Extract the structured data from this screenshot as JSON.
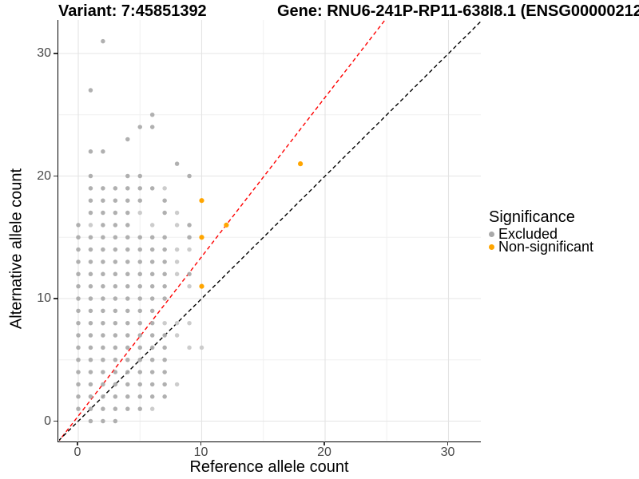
{
  "chart_data": {
    "type": "scatter",
    "titles": {
      "left": "Variant: 7:45851392",
      "right": "Gene: RNU6-241P-RP11-638I8.1 (ENSG00000212"
    },
    "xlabel": "Reference allele count",
    "ylabel": "Alternative allele count",
    "xticks": [
      0,
      10,
      20,
      30
    ],
    "yticks": [
      0,
      10,
      20,
      30
    ],
    "xlim": [
      -1.55,
      32.65
    ],
    "ylim": [
      -1.6,
      32.73
    ],
    "grid": {
      "minor_step": 5,
      "major_color": "#e4e4e4",
      "minor_color": "#f0f0f0",
      "grid_on": true
    },
    "legend": {
      "title": "Significance",
      "position": "right",
      "items": [
        {
          "label": "Excluded",
          "color": "#a9a9a9"
        },
        {
          "label": "Non-significant",
          "color": "#ffa500"
        }
      ]
    },
    "lines": [
      {
        "name": "expected-ratio-line",
        "color": "#ff0000",
        "slope": 1.3,
        "intercept": 0.42,
        "dash": "5,3.5"
      },
      {
        "name": "identity-line",
        "color": "#000000",
        "slope": 1,
        "intercept": 0,
        "dash": "5,3.5"
      }
    ],
    "series": [
      {
        "name": "Excluded",
        "color": "#a9a9a9",
        "faint_color": "#cccccc",
        "points": [
          [
            0,
            1
          ],
          [
            0,
            2
          ],
          [
            0,
            3
          ],
          [
            0,
            4
          ],
          [
            0,
            5
          ],
          [
            0,
            6
          ],
          [
            0,
            7
          ],
          [
            0,
            8
          ],
          [
            0,
            9
          ],
          [
            0,
            10
          ],
          [
            0,
            11
          ],
          [
            0,
            12
          ],
          [
            0,
            13
          ],
          [
            0,
            14
          ],
          [
            0,
            15
          ],
          [
            0,
            16
          ],
          [
            1,
            0
          ],
          [
            1,
            1
          ],
          [
            1,
            2
          ],
          [
            1,
            3
          ],
          [
            1,
            4
          ],
          [
            1,
            5
          ],
          [
            1,
            6
          ],
          [
            1,
            7
          ],
          [
            1,
            8
          ],
          [
            1,
            9
          ],
          [
            1,
            10
          ],
          [
            1,
            11
          ],
          [
            1,
            12
          ],
          [
            1,
            13
          ],
          [
            1,
            14
          ],
          [
            1,
            15
          ],
          [
            1,
            16,
            1
          ],
          [
            1,
            17
          ],
          [
            1,
            18
          ],
          [
            1,
            19
          ],
          [
            1,
            20
          ],
          [
            1,
            22
          ],
          [
            1,
            27
          ],
          [
            2,
            0
          ],
          [
            2,
            1
          ],
          [
            2,
            2
          ],
          [
            2,
            3
          ],
          [
            2,
            4
          ],
          [
            2,
            5
          ],
          [
            2,
            6
          ],
          [
            2,
            7
          ],
          [
            2,
            8
          ],
          [
            2,
            9
          ],
          [
            2,
            10
          ],
          [
            2,
            11
          ],
          [
            2,
            12
          ],
          [
            2,
            13
          ],
          [
            2,
            14
          ],
          [
            2,
            15
          ],
          [
            2,
            16
          ],
          [
            2,
            17
          ],
          [
            2,
            18
          ],
          [
            2,
            19
          ],
          [
            2,
            22
          ],
          [
            2,
            31
          ],
          [
            3,
            0
          ],
          [
            3,
            1
          ],
          [
            3,
            2
          ],
          [
            3,
            3
          ],
          [
            3,
            4
          ],
          [
            3,
            5
          ],
          [
            3,
            6
          ],
          [
            3,
            7
          ],
          [
            3,
            8
          ],
          [
            3,
            9
          ],
          [
            3,
            10
          ],
          [
            3,
            11
          ],
          [
            3,
            12
          ],
          [
            3,
            13
          ],
          [
            3,
            14
          ],
          [
            3,
            15
          ],
          [
            3,
            16
          ],
          [
            3,
            17
          ],
          [
            3,
            18
          ],
          [
            3,
            19
          ],
          [
            4,
            1
          ],
          [
            4,
            2
          ],
          [
            4,
            3
          ],
          [
            4,
            4
          ],
          [
            4,
            5
          ],
          [
            4,
            6
          ],
          [
            4,
            7
          ],
          [
            4,
            8
          ],
          [
            4,
            9
          ],
          [
            4,
            10
          ],
          [
            4,
            11
          ],
          [
            4,
            12
          ],
          [
            4,
            13
          ],
          [
            4,
            14
          ],
          [
            4,
            15
          ],
          [
            4,
            16
          ],
          [
            4,
            17
          ],
          [
            4,
            18
          ],
          [
            4,
            19
          ],
          [
            4,
            20
          ],
          [
            4,
            23
          ],
          [
            5,
            1
          ],
          [
            5,
            2
          ],
          [
            5,
            3
          ],
          [
            5,
            4
          ],
          [
            5,
            5
          ],
          [
            5,
            6
          ],
          [
            5,
            7
          ],
          [
            5,
            8
          ],
          [
            5,
            9
          ],
          [
            5,
            10
          ],
          [
            5,
            11
          ],
          [
            5,
            12
          ],
          [
            5,
            13
          ],
          [
            5,
            14
          ],
          [
            5,
            15
          ],
          [
            5,
            17,
            1
          ],
          [
            5,
            18
          ],
          [
            5,
            19
          ],
          [
            5,
            20
          ],
          [
            5,
            24
          ],
          [
            6,
            1,
            1
          ],
          [
            6,
            2
          ],
          [
            6,
            3
          ],
          [
            6,
            4
          ],
          [
            6,
            5
          ],
          [
            6,
            6
          ],
          [
            6,
            7
          ],
          [
            6,
            8
          ],
          [
            6,
            9
          ],
          [
            6,
            10
          ],
          [
            6,
            11
          ],
          [
            6,
            12
          ],
          [
            6,
            13
          ],
          [
            6,
            14
          ],
          [
            6,
            15
          ],
          [
            6,
            16,
            1
          ],
          [
            6,
            19
          ],
          [
            6,
            24
          ],
          [
            6,
            25
          ],
          [
            7,
            2
          ],
          [
            7,
            3
          ],
          [
            7,
            4
          ],
          [
            7,
            5
          ],
          [
            7,
            6
          ],
          [
            7,
            7
          ],
          [
            7,
            8,
            1
          ],
          [
            7,
            10
          ],
          [
            7,
            11
          ],
          [
            7,
            12
          ],
          [
            7,
            13
          ],
          [
            7,
            14
          ],
          [
            7,
            15
          ],
          [
            7,
            17
          ],
          [
            7,
            18
          ],
          [
            7,
            19,
            1
          ],
          [
            8,
            3,
            1
          ],
          [
            8,
            7,
            1
          ],
          [
            8,
            8,
            1
          ],
          [
            8,
            12,
            1
          ],
          [
            8,
            13,
            1
          ],
          [
            8,
            14,
            1
          ],
          [
            8,
            16,
            1
          ],
          [
            8,
            17,
            1
          ],
          [
            8,
            21
          ],
          [
            9,
            6,
            1
          ],
          [
            9,
            8,
            1
          ],
          [
            9,
            11,
            1
          ],
          [
            9,
            12
          ],
          [
            9,
            14,
            1
          ],
          [
            9,
            15
          ],
          [
            9,
            16
          ],
          [
            9,
            20
          ],
          [
            10,
            6,
            1
          ]
        ]
      },
      {
        "name": "Non-significant",
        "color": "#ffa500",
        "points": [
          [
            10,
            11
          ],
          [
            10,
            15
          ],
          [
            10,
            18
          ],
          [
            12,
            16
          ],
          [
            18,
            21
          ]
        ]
      }
    ]
  }
}
